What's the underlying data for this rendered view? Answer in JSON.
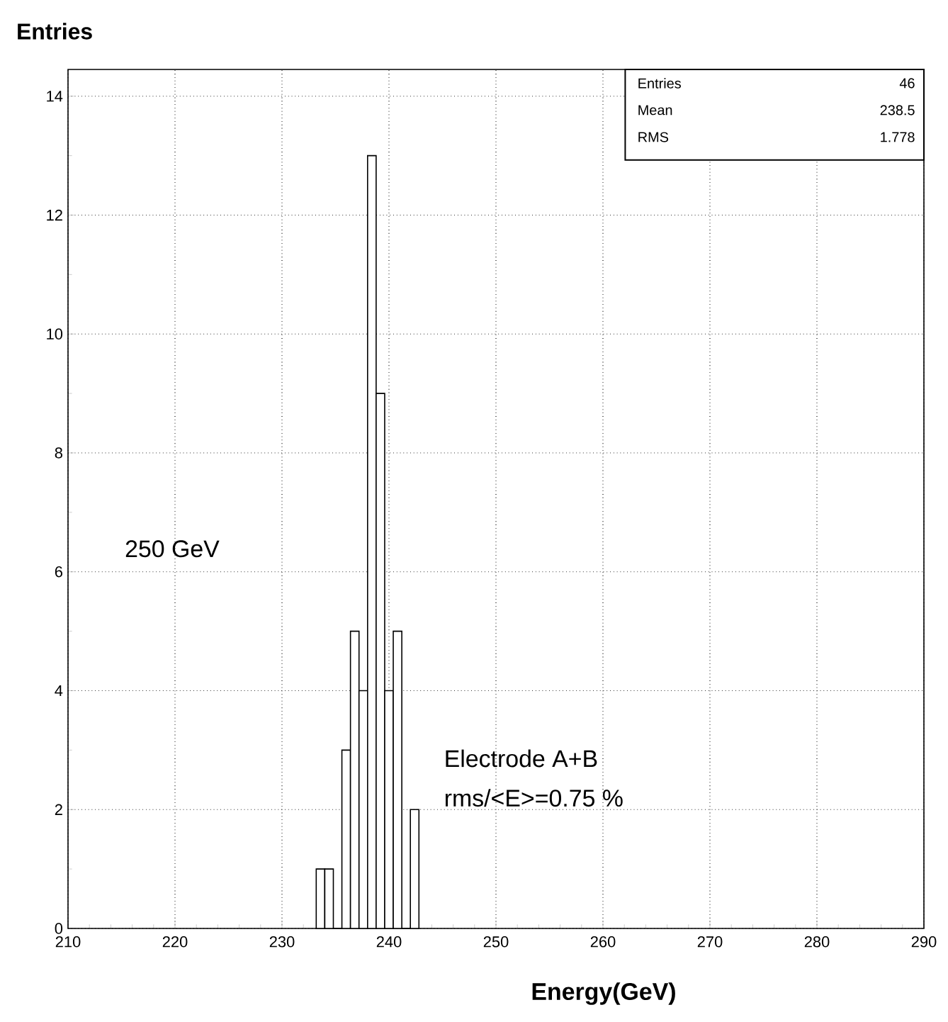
{
  "chart_data": {
    "type": "histogram",
    "xlabel": "Energy(GeV)",
    "ylabel": "Entries",
    "bins": [
      233.2,
      234.0,
      234.8,
      235.6,
      236.4,
      237.2,
      238.0,
      238.8,
      239.6,
      240.4,
      241.2,
      242.0,
      242.8
    ],
    "values": [
      1,
      1,
      0,
      3,
      5,
      4,
      13,
      9,
      4,
      5,
      0,
      2
    ],
    "color": "#000000",
    "xlim": [
      210,
      290
    ],
    "xticks": [
      210,
      220,
      230,
      240,
      250,
      260,
      270,
      280,
      290
    ],
    "ylim": [
      0,
      14.45
    ],
    "yticks": [
      0,
      2,
      4,
      6,
      8,
      10,
      12,
      14
    ],
    "grid": true,
    "annotations": [
      "Entries",
      "46",
      "Mean",
      "238.5",
      "RMS",
      "1.778",
      "250 GeV",
      "Electrode A+B",
      "rms/<E>=0.75 %"
    ]
  }
}
